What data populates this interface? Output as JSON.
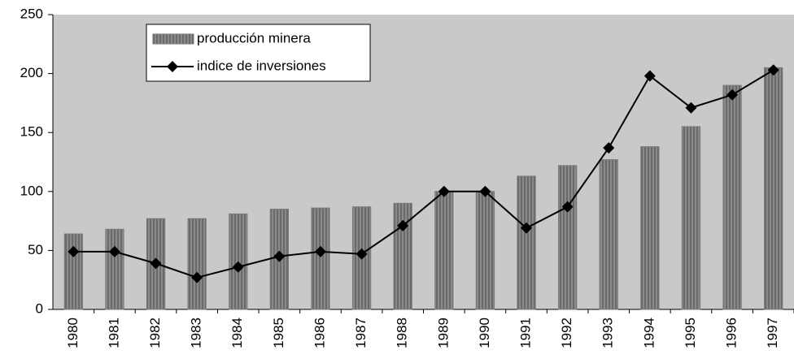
{
  "chart_data": {
    "type": "bar",
    "categories": [
      "1980",
      "1981",
      "1982",
      "1983",
      "1984",
      "1985",
      "1986",
      "1987",
      "1988",
      "1989",
      "1990",
      "1991",
      "1992",
      "1993",
      "1994",
      "1995",
      "1996",
      "1997"
    ],
    "series": [
      {
        "name": "producción minera",
        "type": "bar",
        "color": "#7a7a7a",
        "values": [
          64,
          68,
          77,
          77,
          81,
          85,
          86,
          87,
          90,
          100,
          100,
          113,
          122,
          127,
          138,
          155,
          190,
          205
        ]
      },
      {
        "name": "indice de inversiones",
        "type": "line",
        "color": "#000000",
        "values": [
          49,
          49,
          39,
          27,
          36,
          45,
          49,
          47,
          71,
          100,
          100,
          69,
          87,
          137,
          198,
          171,
          182,
          203
        ]
      }
    ],
    "ylim": [
      0,
      250
    ],
    "yticks": [
      0,
      50,
      100,
      150,
      200,
      250
    ],
    "grid": false,
    "legend": "top-left"
  }
}
